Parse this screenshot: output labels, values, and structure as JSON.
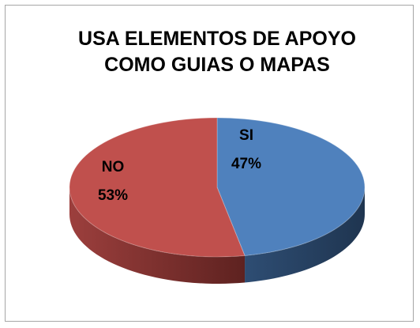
{
  "chart_data": {
    "type": "pie",
    "title": "USA ELEMENTOS DE APOYO COMO GUIAS O MAPAS",
    "categories": [
      "SI",
      "NO"
    ],
    "values": [
      47,
      53
    ],
    "value_labels": [
      "47%",
      "53%"
    ],
    "colors": [
      "#4f81bd",
      "#c0504d"
    ],
    "three_d": true
  }
}
